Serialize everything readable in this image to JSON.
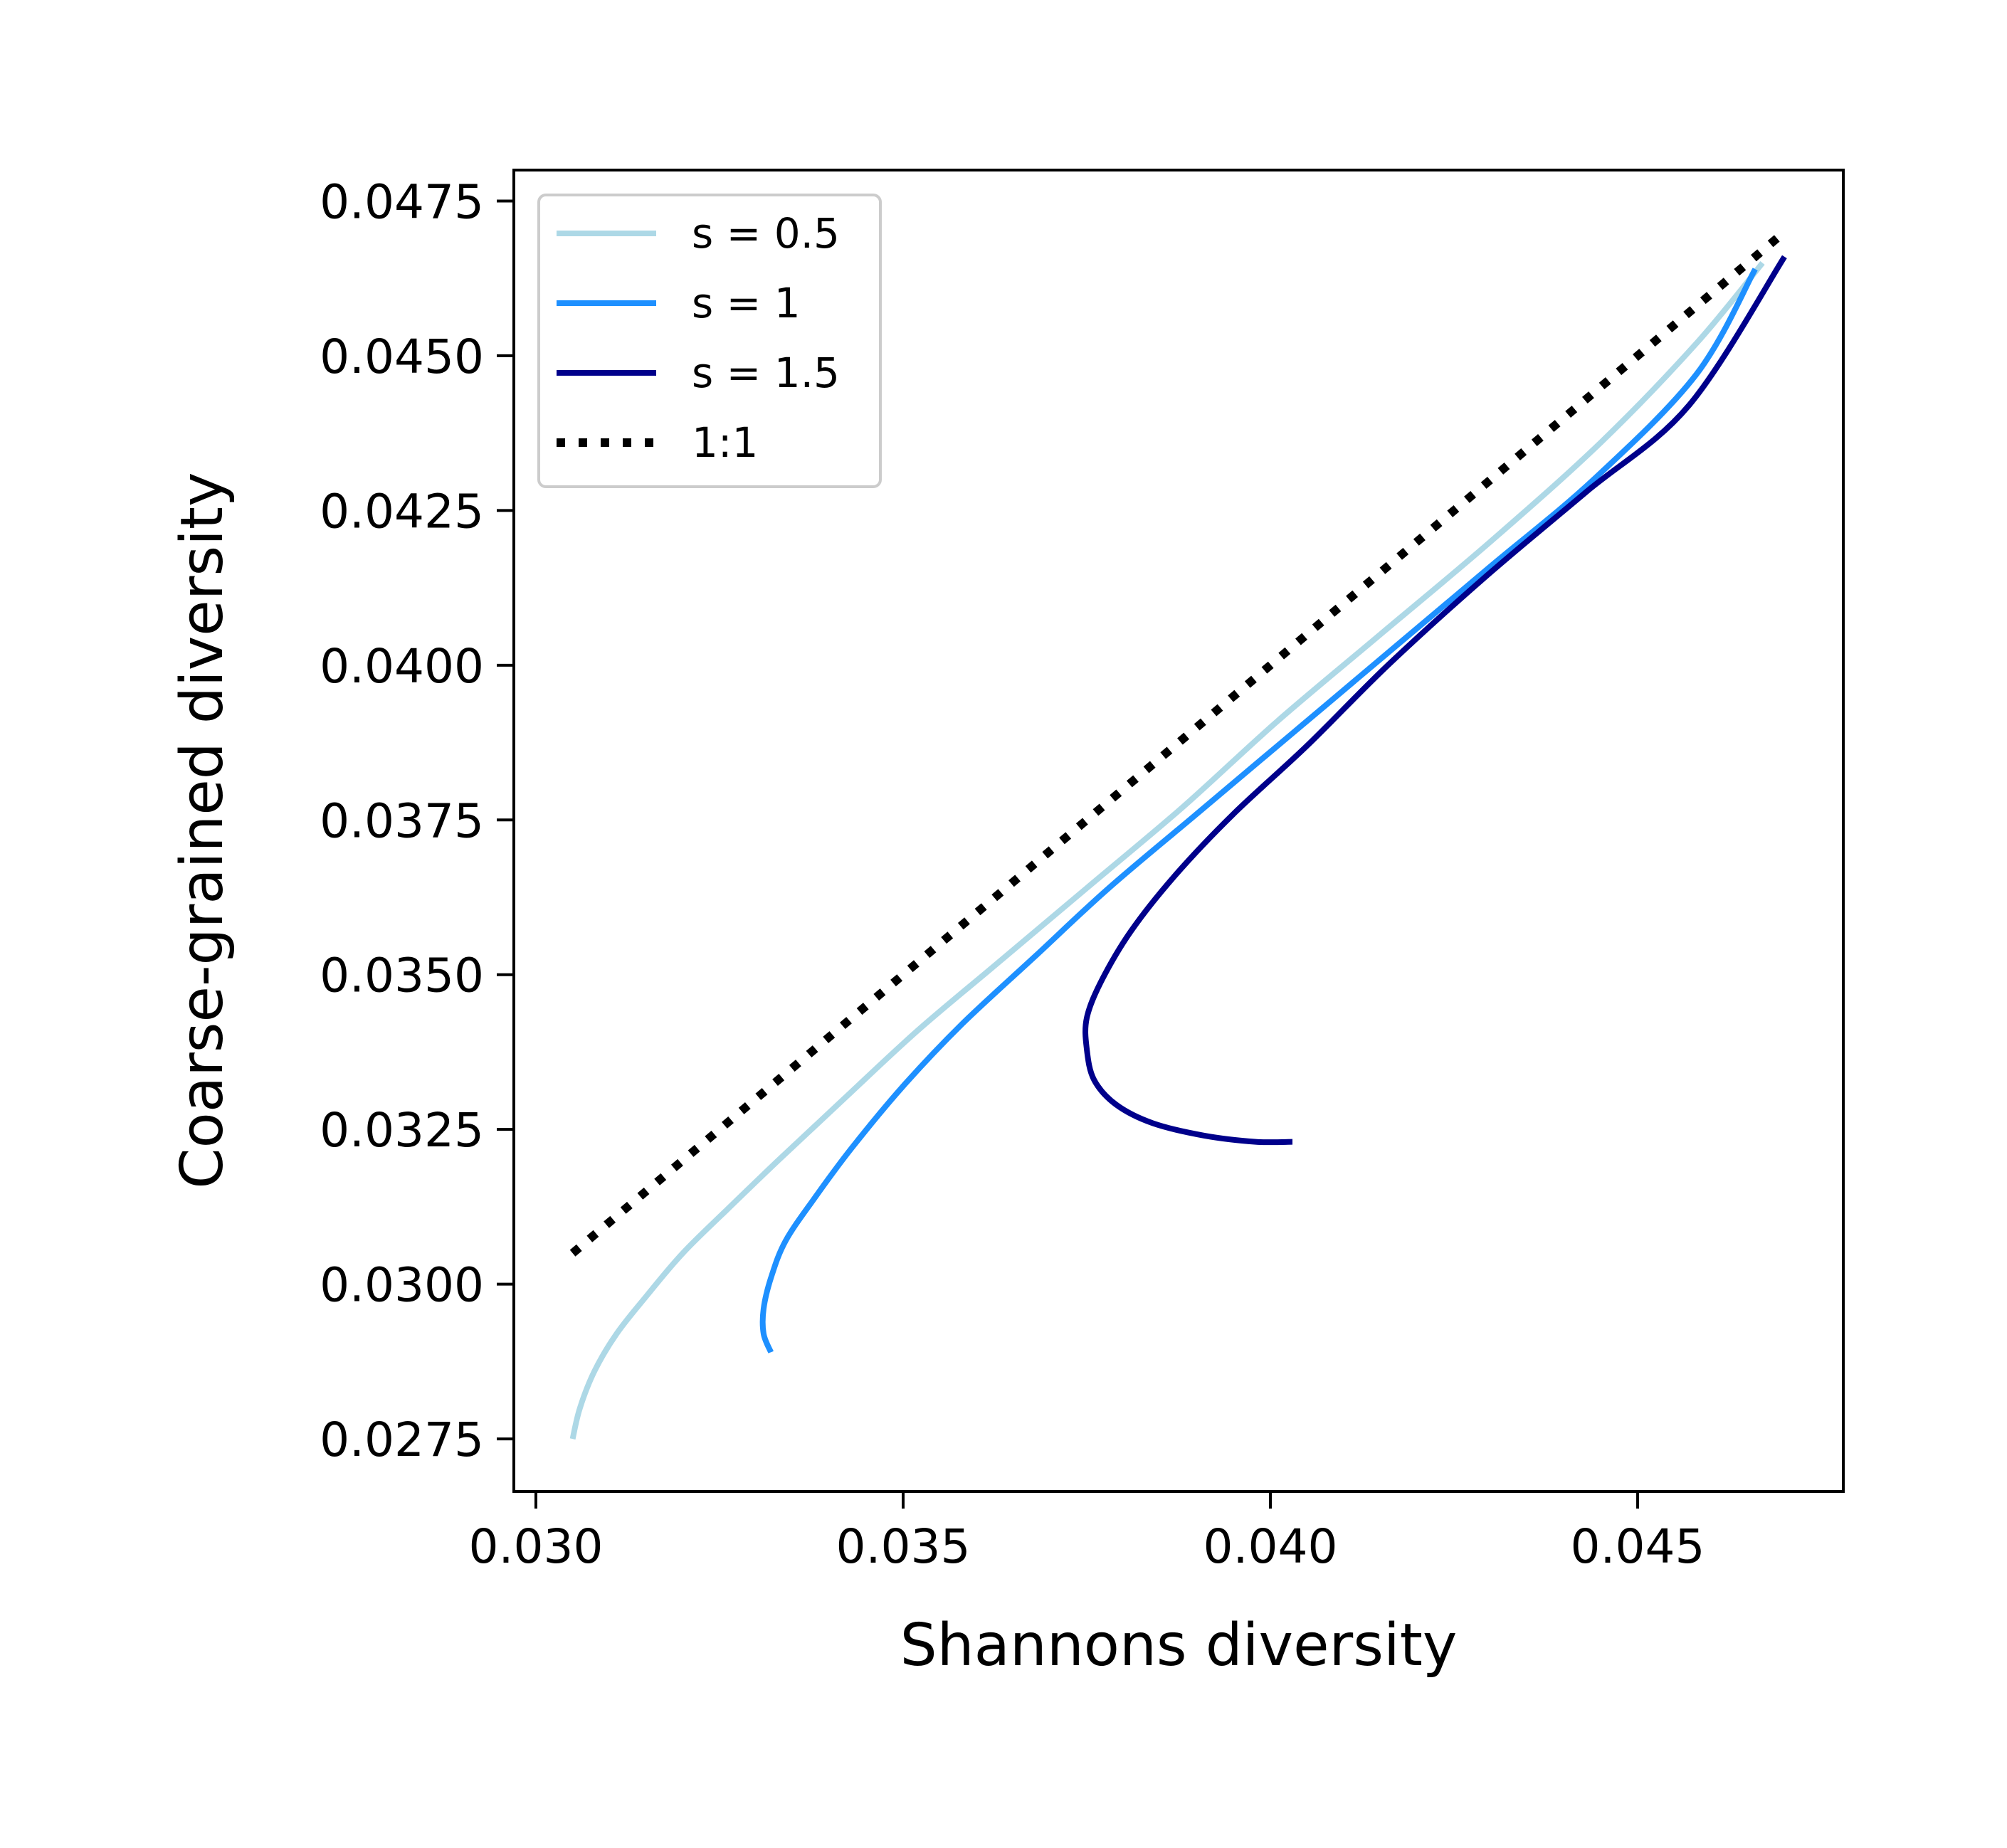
{
  "chart_data": {
    "type": "line",
    "xlabel": "Shannons diversity",
    "ylabel": "Coarse-grained diversity",
    "xlim": [
      0.0297,
      0.0478
    ],
    "ylim": [
      0.02665,
      0.048
    ],
    "xticks": [
      {
        "value": 0.03,
        "label": "0.030"
      },
      {
        "value": 0.035,
        "label": "0.035"
      },
      {
        "value": 0.04,
        "label": "0.040"
      },
      {
        "value": 0.045,
        "label": "0.045"
      }
    ],
    "yticks": [
      {
        "value": 0.0275,
        "label": "0.0275"
      },
      {
        "value": 0.03,
        "label": "0.0300"
      },
      {
        "value": 0.0325,
        "label": "0.0325"
      },
      {
        "value": 0.035,
        "label": "0.0350"
      },
      {
        "value": 0.0375,
        "label": "0.0375"
      },
      {
        "value": 0.04,
        "label": "0.0400"
      },
      {
        "value": 0.0425,
        "label": "0.0425"
      },
      {
        "value": 0.045,
        "label": "0.0450"
      },
      {
        "value": 0.0475,
        "label": "0.0475"
      }
    ],
    "grid": false,
    "legend_position": "top-left",
    "series": [
      {
        "name": "s = 0.5",
        "color": "#add8e6",
        "style": "solid",
        "x": [
          0.0305,
          0.0306,
          0.0308,
          0.0311,
          0.0315,
          0.032,
          0.0326,
          0.0333,
          0.0342,
          0.0352,
          0.0363,
          0.0375,
          0.0388,
          0.0401,
          0.0415,
          0.043,
          0.0445,
          0.0458,
          0.0467
        ],
        "y": [
          0.0275,
          0.028,
          0.0286,
          0.0292,
          0.0298,
          0.0305,
          0.0312,
          0.032,
          0.033,
          0.0341,
          0.0352,
          0.0364,
          0.0377,
          0.0391,
          0.0405,
          0.042,
          0.0436,
          0.0452,
          0.0465
        ]
      },
      {
        "name": "s = 1",
        "color": "#1e90ff",
        "style": "solid",
        "x": [
          0.0332,
          0.0331,
          0.0331,
          0.0332,
          0.0334,
          0.0338,
          0.0343,
          0.035,
          0.0358,
          0.0368,
          0.0378,
          0.039,
          0.0403,
          0.0416,
          0.043,
          0.0444,
          0.0458,
          0.0466
        ],
        "y": [
          0.0289,
          0.0292,
          0.0296,
          0.0301,
          0.0307,
          0.0314,
          0.0322,
          0.0332,
          0.0342,
          0.0353,
          0.0364,
          0.0376,
          0.0389,
          0.0402,
          0.0416,
          0.043,
          0.0447,
          0.0464
        ]
      },
      {
        "name": "s = 1.5",
        "color": "#00008b",
        "style": "solid",
        "x": [
          0.0403,
          0.0398,
          0.0391,
          0.0384,
          0.0379,
          0.0376,
          0.0375,
          0.0375,
          0.0377,
          0.0381,
          0.0387,
          0.0395,
          0.0405,
          0.0416,
          0.0429,
          0.0443,
          0.0457,
          0.047
        ],
        "y": [
          0.0323,
          0.0323,
          0.0324,
          0.0326,
          0.0329,
          0.0333,
          0.0338,
          0.0343,
          0.0349,
          0.0357,
          0.0366,
          0.0376,
          0.0387,
          0.04,
          0.0414,
          0.0428,
          0.0442,
          0.0466
        ]
      },
      {
        "name": "1:1",
        "color": "#000000",
        "style": "dotted",
        "x": [
          0.0305,
          0.047
        ],
        "y": [
          0.0305,
          0.047
        ]
      }
    ]
  }
}
